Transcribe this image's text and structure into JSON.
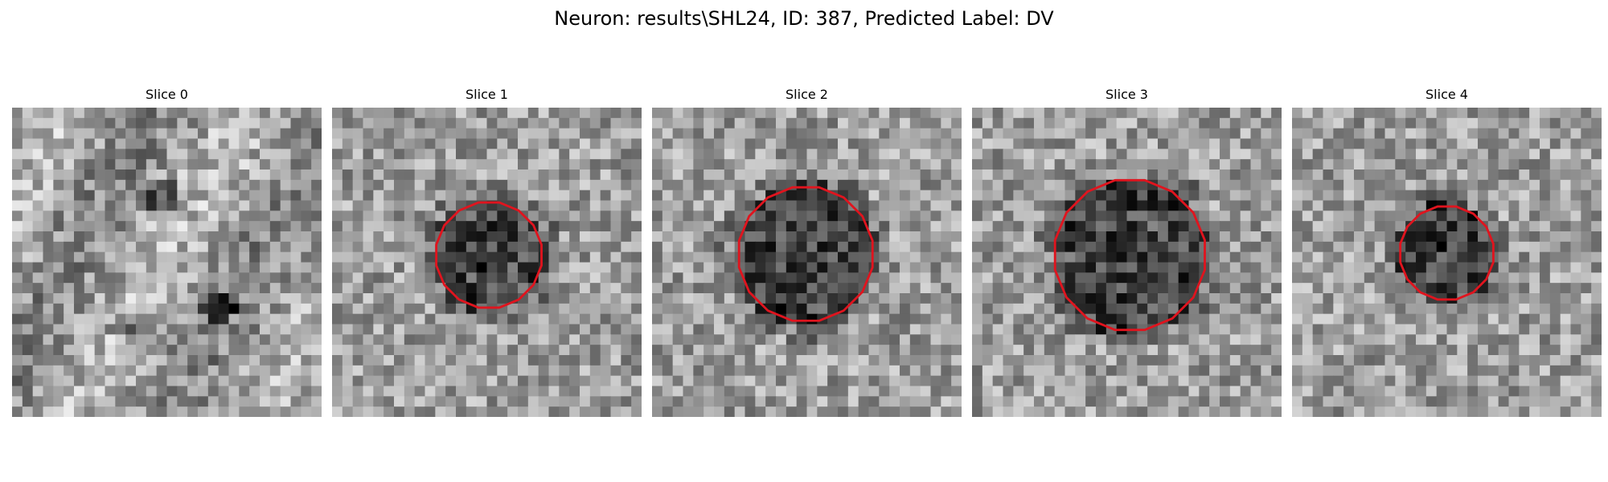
{
  "figure": {
    "title": "Neuron: results\\SHL24, ID: 387, Predicted Label: DV",
    "contour_color": "#e0141e",
    "panels": [
      {
        "title": "Slice 0",
        "has_contour": false
      },
      {
        "title": "Slice 1",
        "has_contour": true
      },
      {
        "title": "Slice 2",
        "has_contour": true
      },
      {
        "title": "Slice 3",
        "has_contour": true
      },
      {
        "title": "Slice 4",
        "has_contour": true
      }
    ]
  }
}
